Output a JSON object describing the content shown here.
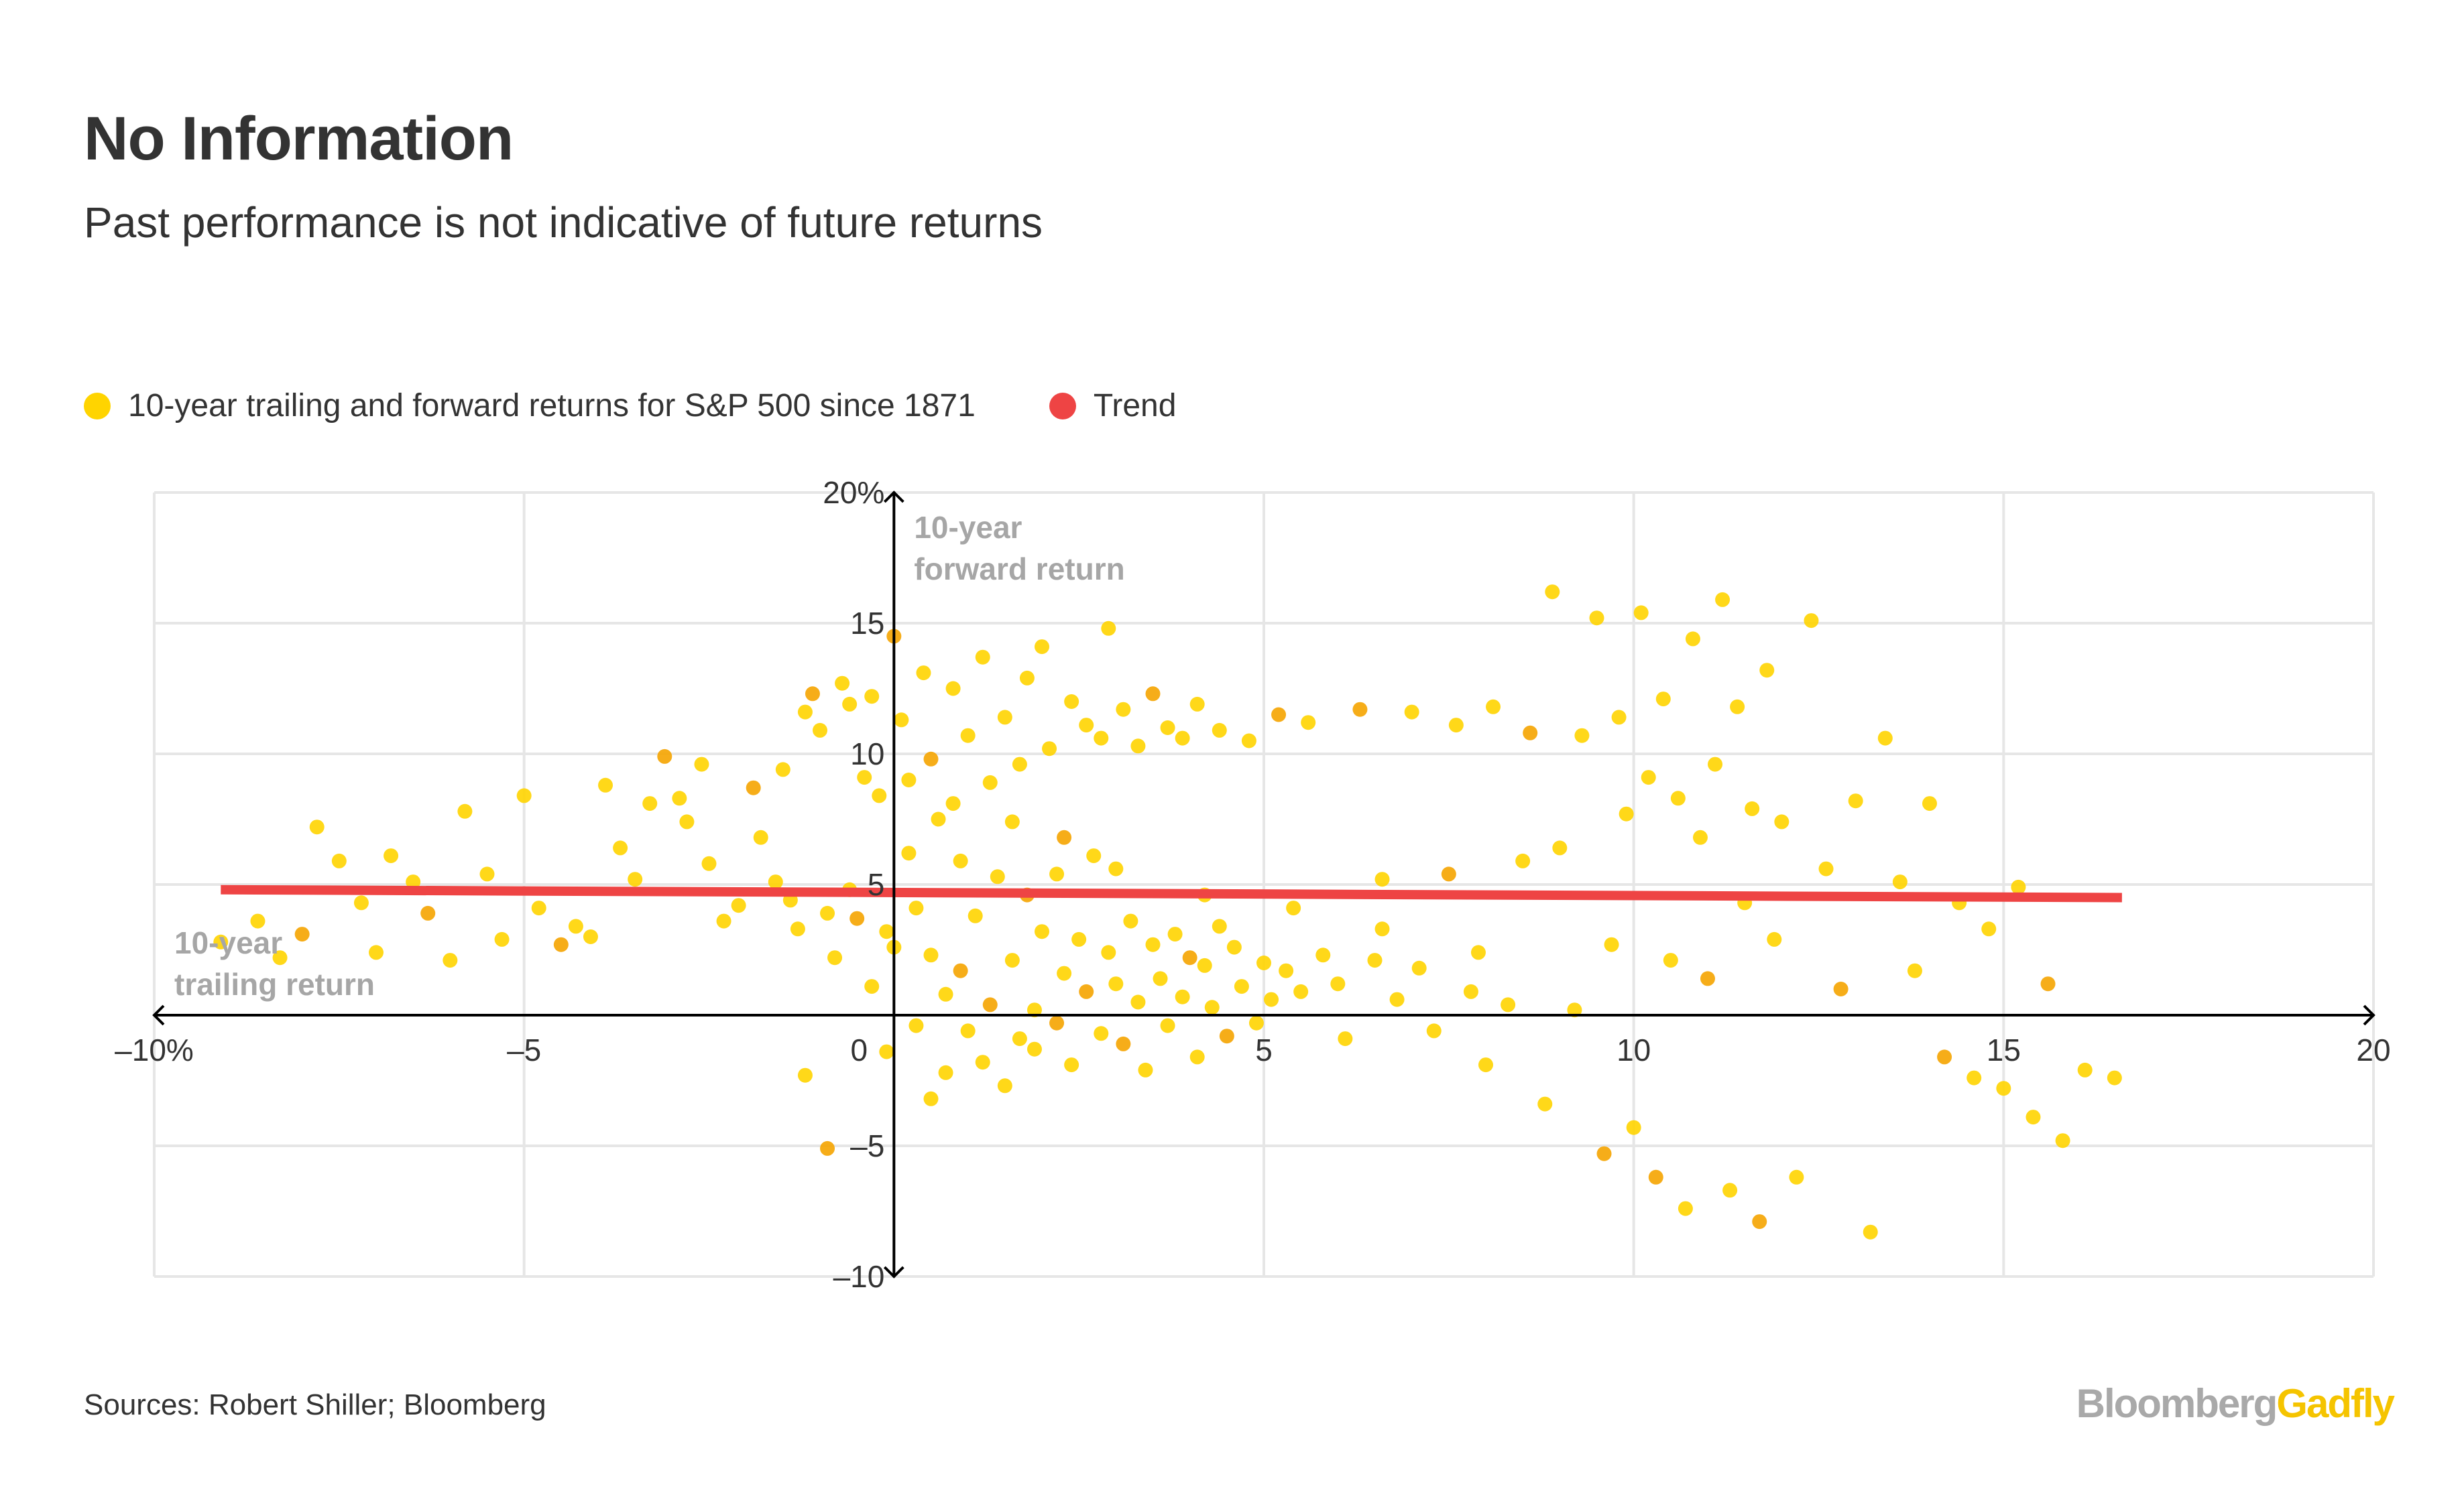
{
  "title": "No Information",
  "subtitle": "Past performance is not indicative of future returns",
  "source": "Sources: Robert Shiller; Bloomberg",
  "brand": {
    "part1": "Bloomberg",
    "part2": "Gadfly"
  },
  "colors": {
    "points": "#FFD400",
    "points_dense": "#F5A400",
    "trend": "#EE4444",
    "grid": "#E6E6E6",
    "axis": "#000000",
    "axis_label": "#A6A6A6"
  },
  "chart_data": {
    "type": "scatter",
    "title": "No Information",
    "subtitle": "Past performance is not indicative of future returns",
    "xlabel": "10-year trailing return",
    "ylabel": "10-year forward return",
    "xlim": [
      -10,
      20
    ],
    "ylim": [
      -10,
      20
    ],
    "x_ticks": [
      {
        "value": -10,
        "label": "–10%"
      },
      {
        "value": -5,
        "label": "–5"
      },
      {
        "value": 0,
        "label": "0"
      },
      {
        "value": 5,
        "label": "5"
      },
      {
        "value": 10,
        "label": "10"
      },
      {
        "value": 15,
        "label": "15"
      },
      {
        "value": 20,
        "label": "20"
      }
    ],
    "y_ticks": [
      {
        "value": -10,
        "label": "–10"
      },
      {
        "value": -5,
        "label": "–5"
      },
      {
        "value": 0,
        "label": ""
      },
      {
        "value": 5,
        "label": "5"
      },
      {
        "value": 10,
        "label": "10"
      },
      {
        "value": 15,
        "label": "15"
      },
      {
        "value": 20,
        "label": "20%"
      }
    ],
    "grid": true,
    "legend_position": "top-left",
    "series": [
      {
        "name": "10-year trailing and forward returns for S&P 500 since 1871",
        "type": "scatter",
        "points": [
          [
            -9.1,
            2.8
          ],
          [
            -8.6,
            3.6
          ],
          [
            -8.3,
            2.2
          ],
          [
            -8.0,
            3.1
          ],
          [
            -7.8,
            7.2
          ],
          [
            -7.5,
            5.9
          ],
          [
            -7.2,
            4.3
          ],
          [
            -7.0,
            2.4
          ],
          [
            -6.8,
            6.1
          ],
          [
            -6.5,
            5.1
          ],
          [
            -6.3,
            3.9
          ],
          [
            -6.0,
            2.1
          ],
          [
            -5.8,
            7.8
          ],
          [
            -5.5,
            5.4
          ],
          [
            -5.3,
            2.9
          ],
          [
            -5.0,
            8.4
          ],
          [
            -4.8,
            4.1
          ],
          [
            -4.5,
            2.7
          ],
          [
            -4.3,
            3.4
          ],
          [
            -4.1,
            3.0
          ],
          [
            -3.9,
            8.8
          ],
          [
            -3.7,
            6.4
          ],
          [
            -3.5,
            5.2
          ],
          [
            -3.3,
            8.1
          ],
          [
            -3.1,
            9.9
          ],
          [
            -2.9,
            8.3
          ],
          [
            -2.8,
            7.4
          ],
          [
            -2.6,
            9.6
          ],
          [
            -2.5,
            5.8
          ],
          [
            -2.3,
            3.6
          ],
          [
            -2.1,
            4.2
          ],
          [
            -1.9,
            8.7
          ],
          [
            -1.8,
            6.8
          ],
          [
            -1.6,
            5.1
          ],
          [
            -1.5,
            9.4
          ],
          [
            -1.4,
            4.4
          ],
          [
            -1.3,
            3.3
          ],
          [
            -1.2,
            11.6
          ],
          [
            -1.1,
            12.3
          ],
          [
            -1.0,
            10.9
          ],
          [
            -0.9,
            3.9
          ],
          [
            -0.8,
            2.2
          ],
          [
            -0.7,
            12.7
          ],
          [
            -0.6,
            11.9
          ],
          [
            -0.6,
            4.8
          ],
          [
            -0.5,
            3.7
          ],
          [
            -0.4,
            9.1
          ],
          [
            -0.3,
            12.2
          ],
          [
            -0.3,
            1.1
          ],
          [
            -0.2,
            8.4
          ],
          [
            -0.1,
            3.2
          ],
          [
            -0.1,
            -1.4
          ],
          [
            0.0,
            14.5
          ],
          [
            0.0,
            2.6
          ],
          [
            0.1,
            11.3
          ],
          [
            0.2,
            6.2
          ],
          [
            0.3,
            4.1
          ],
          [
            0.3,
            -0.4
          ],
          [
            0.4,
            13.1
          ],
          [
            0.5,
            9.8
          ],
          [
            0.5,
            2.3
          ],
          [
            0.6,
            7.5
          ],
          [
            0.7,
            0.8
          ],
          [
            0.7,
            -2.2
          ],
          [
            0.8,
            12.5
          ],
          [
            0.9,
            5.9
          ],
          [
            0.9,
            1.7
          ],
          [
            1.0,
            10.7
          ],
          [
            1.0,
            -0.6
          ],
          [
            1.1,
            3.8
          ],
          [
            1.2,
            13.7
          ],
          [
            1.2,
            -1.8
          ],
          [
            1.3,
            8.9
          ],
          [
            1.3,
            0.4
          ],
          [
            1.4,
            5.3
          ],
          [
            1.5,
            -2.7
          ],
          [
            1.5,
            11.4
          ],
          [
            1.6,
            2.1
          ],
          [
            1.7,
            -0.9
          ],
          [
            1.7,
            9.6
          ],
          [
            1.8,
            4.6
          ],
          [
            1.8,
            12.9
          ],
          [
            1.9,
            0.2
          ],
          [
            1.9,
            -1.3
          ],
          [
            2.0,
            14.1
          ],
          [
            2.0,
            3.2
          ],
          [
            2.1,
            10.2
          ],
          [
            2.2,
            -0.3
          ],
          [
            2.2,
            5.4
          ],
          [
            2.3,
            1.6
          ],
          [
            2.4,
            12.0
          ],
          [
            2.4,
            -1.9
          ],
          [
            2.5,
            2.9
          ],
          [
            2.6,
            11.1
          ],
          [
            2.6,
            0.9
          ],
          [
            2.7,
            6.1
          ],
          [
            2.8,
            -0.7
          ],
          [
            2.8,
            10.6
          ],
          [
            2.9,
            2.4
          ],
          [
            2.9,
            14.8
          ],
          [
            3.0,
            1.2
          ],
          [
            3.1,
            -1.1
          ],
          [
            3.1,
            11.7
          ],
          [
            3.2,
            3.6
          ],
          [
            3.3,
            0.5
          ],
          [
            3.3,
            10.3
          ],
          [
            3.4,
            -2.1
          ],
          [
            3.5,
            2.7
          ],
          [
            3.5,
            12.3
          ],
          [
            3.6,
            1.4
          ],
          [
            3.7,
            -0.4
          ],
          [
            3.7,
            11.0
          ],
          [
            3.8,
            3.1
          ],
          [
            3.9,
            0.7
          ],
          [
            3.9,
            10.6
          ],
          [
            4.0,
            2.2
          ],
          [
            4.1,
            -1.6
          ],
          [
            4.1,
            11.9
          ],
          [
            4.2,
            1.9
          ],
          [
            4.3,
            0.3
          ],
          [
            4.4,
            3.4
          ],
          [
            4.4,
            10.9
          ],
          [
            4.5,
            -0.8
          ],
          [
            4.6,
            2.6
          ],
          [
            4.7,
            1.1
          ],
          [
            4.8,
            10.5
          ],
          [
            4.9,
            -0.3
          ],
          [
            5.0,
            2.0
          ],
          [
            5.1,
            0.6
          ],
          [
            5.2,
            11.5
          ],
          [
            5.3,
            1.7
          ],
          [
            5.5,
            0.9
          ],
          [
            5.6,
            11.2
          ],
          [
            5.8,
            2.3
          ],
          [
            6.0,
            1.2
          ],
          [
            6.1,
            -0.9
          ],
          [
            6.3,
            11.7
          ],
          [
            6.5,
            2.1
          ],
          [
            6.6,
            5.2
          ],
          [
            6.8,
            0.6
          ],
          [
            7.0,
            11.6
          ],
          [
            7.1,
            1.8
          ],
          [
            7.3,
            -0.6
          ],
          [
            7.5,
            5.4
          ],
          [
            7.6,
            11.1
          ],
          [
            7.8,
            0.9
          ],
          [
            8.0,
            -1.9
          ],
          [
            8.1,
            11.8
          ],
          [
            8.3,
            0.4
          ],
          [
            8.5,
            5.9
          ],
          [
            8.6,
            10.8
          ],
          [
            8.8,
            -3.4
          ],
          [
            8.9,
            16.2
          ],
          [
            9.0,
            6.4
          ],
          [
            9.2,
            0.2
          ],
          [
            9.3,
            10.7
          ],
          [
            9.5,
            15.2
          ],
          [
            9.6,
            -5.3
          ],
          [
            9.7,
            2.7
          ],
          [
            9.8,
            11.4
          ],
          [
            9.9,
            7.7
          ],
          [
            10.0,
            -4.3
          ],
          [
            10.1,
            15.4
          ],
          [
            10.2,
            9.1
          ],
          [
            10.3,
            -6.2
          ],
          [
            10.4,
            12.1
          ],
          [
            10.5,
            2.1
          ],
          [
            10.6,
            8.3
          ],
          [
            10.7,
            -7.4
          ],
          [
            10.8,
            14.4
          ],
          [
            10.9,
            6.8
          ],
          [
            11.0,
            1.4
          ],
          [
            11.1,
            9.6
          ],
          [
            11.2,
            15.9
          ],
          [
            11.3,
            -6.7
          ],
          [
            11.4,
            11.8
          ],
          [
            11.5,
            4.3
          ],
          [
            11.6,
            7.9
          ],
          [
            11.7,
            -7.9
          ],
          [
            11.8,
            13.2
          ],
          [
            11.9,
            2.9
          ],
          [
            12.0,
            7.4
          ],
          [
            12.2,
            -6.2
          ],
          [
            12.4,
            15.1
          ],
          [
            12.6,
            5.6
          ],
          [
            12.8,
            1.0
          ],
          [
            13.0,
            8.2
          ],
          [
            13.2,
            -8.3
          ],
          [
            13.4,
            10.6
          ],
          [
            13.6,
            5.1
          ],
          [
            13.8,
            1.7
          ],
          [
            14.0,
            8.1
          ],
          [
            14.2,
            -1.6
          ],
          [
            14.4,
            4.3
          ],
          [
            14.6,
            -2.4
          ],
          [
            14.8,
            3.3
          ],
          [
            15.0,
            -2.8
          ],
          [
            15.2,
            4.9
          ],
          [
            15.4,
            -3.9
          ],
          [
            15.6,
            1.2
          ],
          [
            15.8,
            -4.8
          ],
          [
            16.1,
            -2.1
          ],
          [
            16.5,
            -2.4
          ],
          [
            0.2,
            9.0
          ],
          [
            0.8,
            8.1
          ],
          [
            1.6,
            7.4
          ],
          [
            2.3,
            6.8
          ],
          [
            3.0,
            5.6
          ],
          [
            4.2,
            4.6
          ],
          [
            5.4,
            4.1
          ],
          [
            6.6,
            3.3
          ],
          [
            7.9,
            2.4
          ],
          [
            0.5,
            -3.2
          ],
          [
            -0.9,
            -5.1
          ],
          [
            -1.2,
            -2.3
          ]
        ]
      },
      {
        "name": "Trend",
        "type": "line",
        "points": [
          [
            -9.1,
            4.8
          ],
          [
            16.6,
            4.5
          ]
        ]
      }
    ]
  }
}
